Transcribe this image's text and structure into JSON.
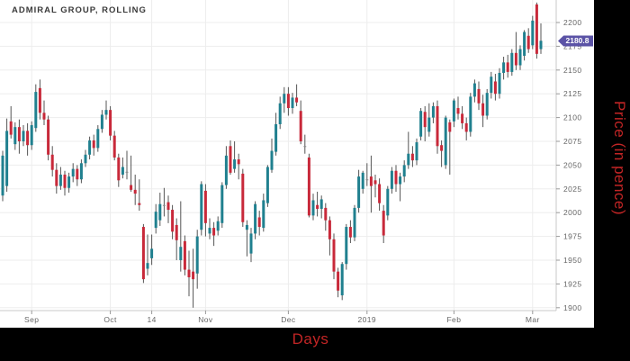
{
  "colors": {
    "up": "#20808f",
    "down": "#c8293a",
    "neutral": "#8a8a8a",
    "wick": "#555555",
    "grid": "#ededed",
    "axis": "#c8c8c8",
    "tick": "#999999",
    "tick_text": "#666666",
    "badge": "#5b53a6",
    "axis_title_red": "#c22525",
    "title_text": "#3a3a3a"
  },
  "chart_data": {
    "type": "candlestick",
    "title": "ADMIRAL GROUP, ROLLING",
    "xlabel": "Days",
    "ylabel": "Price (in pence)",
    "ylim": [
      1900,
      2224
    ],
    "grid": true,
    "last_price": 2180.8,
    "y_ticks": [
      2200,
      2175,
      2150,
      2125,
      2100,
      2075,
      2050,
      2025,
      2000,
      1975,
      1950,
      1925,
      1900
    ],
    "x_ticks": [
      {
        "label": "Sep",
        "index": 7
      },
      {
        "label": "Oct",
        "index": 26
      },
      {
        "label": "14",
        "index": 36
      },
      {
        "label": "Nov",
        "index": 49
      },
      {
        "label": "Dec",
        "index": 69
      },
      {
        "label": "2019",
        "index": 88
      },
      {
        "label": "Feb",
        "index": 109
      },
      {
        "label": "Mar",
        "index": 128
      }
    ],
    "series": [
      {
        "name": "ADMIRAL GROUP, ROLLING",
        "ohlc": [
          [
            2018,
            2065,
            2012,
            2060
          ],
          [
            2028,
            2099,
            2022,
            2086
          ],
          [
            2096,
            2112,
            2078,
            2082
          ],
          [
            2072,
            2095,
            2066,
            2090
          ],
          [
            2090,
            2098,
            2062,
            2075
          ],
          [
            2075,
            2092,
            2070,
            2086
          ],
          [
            2086,
            2094,
            2060,
            2071
          ],
          [
            2071,
            2096,
            2066,
            2092
          ],
          [
            2089,
            2135,
            2085,
            2127
          ],
          [
            2131,
            2140,
            2098,
            2105
          ],
          [
            2105,
            2118,
            2092,
            2098
          ],
          [
            2098,
            2102,
            2055,
            2061
          ],
          [
            2061,
            2070,
            2038,
            2045
          ],
          [
            2045,
            2052,
            2020,
            2028
          ],
          [
            2028,
            2048,
            2024,
            2040
          ],
          [
            2040,
            2044,
            2018,
            2026
          ],
          [
            2026,
            2042,
            2021,
            2038
          ],
          [
            2038,
            2052,
            2032,
            2046
          ],
          [
            2046,
            2050,
            2028,
            2035
          ],
          [
            2035,
            2056,
            2031,
            2052
          ],
          [
            2052,
            2066,
            2048,
            2061
          ],
          [
            2061,
            2080,
            2056,
            2076
          ],
          [
            2076,
            2082,
            2060,
            2068
          ],
          [
            2068,
            2092,
            2064,
            2088
          ],
          [
            2088,
            2108,
            2084,
            2103
          ],
          [
            2103,
            2118,
            2098,
            2108
          ],
          [
            2108,
            2112,
            2076,
            2081
          ],
          [
            2081,
            2086,
            2055,
            2058
          ],
          [
            2058,
            2062,
            2027,
            2034
          ],
          [
            2040,
            2058,
            2036,
            2048
          ],
          [
            2043,
            2065,
            2035,
            2043
          ],
          [
            2029,
            2060,
            2022,
            2024
          ],
          [
            2024,
            2040,
            2008,
            2020
          ],
          [
            2010,
            2035,
            2002,
            2008
          ],
          [
            1985,
            1988,
            1926,
            1930
          ],
          [
            1941,
            1977,
            1934,
            1947
          ],
          [
            1952,
            1977,
            1945,
            1962
          ],
          [
            1984,
            2009,
            1978,
            2001
          ],
          [
            1992,
            2021,
            1986,
            2009
          ],
          [
            2008,
            2026,
            1996,
            2008
          ],
          [
            2011,
            2018,
            1989,
            2003
          ],
          [
            2003,
            2008,
            1972,
            1980
          ],
          [
            1987,
            1994,
            1950,
            1971
          ],
          [
            1950,
            2012,
            1938,
            1964
          ],
          [
            1970,
            1976,
            1934,
            1940
          ],
          [
            1940,
            1960,
            1912,
            1932
          ],
          [
            1938,
            1962,
            1900,
            1930
          ],
          [
            1936,
            1982,
            1920,
            1975
          ],
          [
            1982,
            2033,
            1976,
            2030
          ],
          [
            2023,
            2030,
            1975,
            1989
          ],
          [
            1978,
            1994,
            1972,
            1984
          ],
          [
            1984,
            1990,
            1965,
            1976
          ],
          [
            1981,
            1996,
            1976,
            1991
          ],
          [
            1989,
            2032,
            1984,
            2029
          ],
          [
            2029,
            2070,
            2025,
            2060
          ],
          [
            2070,
            2076,
            2040,
            2042
          ],
          [
            2046,
            2075,
            2042,
            2056
          ],
          [
            2056,
            2062,
            2035,
            2051
          ],
          [
            2041,
            2046,
            1985,
            1990
          ],
          [
            1982,
            1992,
            1954,
            1987
          ],
          [
            1957,
            1984,
            1948,
            1978
          ],
          [
            1978,
            2012,
            1972,
            2009
          ],
          [
            1995,
            2002,
            1976,
            1985
          ],
          [
            1984,
            2020,
            1980,
            2013
          ],
          [
            2010,
            2050,
            2006,
            2048
          ],
          [
            2045,
            2078,
            2042,
            2065
          ],
          [
            2064,
            2105,
            2060,
            2093
          ],
          [
            2093,
            2122,
            2088,
            2115
          ],
          [
            2115,
            2132,
            2105,
            2125
          ],
          [
            2125,
            2132,
            2102,
            2110
          ],
          [
            2110,
            2126,
            2104,
            2121
          ],
          [
            2121,
            2135,
            2112,
            2116
          ],
          [
            2107,
            2118,
            2072,
            2075
          ],
          [
            2070,
            2082,
            2062,
            2070
          ],
          [
            2058,
            2062,
            1995,
            1997
          ],
          [
            1997,
            2020,
            1992,
            2013
          ],
          [
            2008,
            2022,
            1996,
            2004
          ],
          [
            2004,
            2018,
            1994,
            2014
          ],
          [
            2005,
            2010,
            1981,
            1992
          ],
          [
            1992,
            1996,
            1955,
            1972
          ],
          [
            1972,
            1978,
            1930,
            1938
          ],
          [
            1938,
            1942,
            1911,
            1918
          ],
          [
            1913,
            1948,
            1908,
            1946
          ],
          [
            1946,
            1988,
            1940,
            1985
          ],
          [
            1985,
            1992,
            1968,
            1974
          ],
          [
            1974,
            2008,
            1970,
            2005
          ],
          [
            2005,
            2045,
            2000,
            2038
          ],
          [
            2025,
            2044,
            2020,
            2042
          ],
          [
            2035,
            2052,
            2028,
            2035
          ],
          [
            2038,
            2060,
            2000,
            2028
          ],
          [
            2034,
            2040,
            2016,
            2030
          ],
          [
            2030,
            2036,
            2002,
            2010
          ],
          [
            2002,
            2008,
            1968,
            1976
          ],
          [
            1997,
            2028,
            1992,
            2025
          ],
          [
            2025,
            2048,
            2020,
            2044
          ],
          [
            2044,
            2050,
            2022,
            2030
          ],
          [
            2030,
            2042,
            2012,
            2038
          ],
          [
            2038,
            2055,
            2032,
            2050
          ],
          [
            2050,
            2085,
            2046,
            2062
          ],
          [
            2062,
            2070,
            2048,
            2055
          ],
          [
            2055,
            2078,
            2050,
            2074
          ],
          [
            2080,
            2110,
            2076,
            2107
          ],
          [
            2106,
            2112,
            2075,
            2090
          ],
          [
            2085,
            2115,
            2080,
            2100
          ],
          [
            2100,
            2116,
            2094,
            2112
          ],
          [
            2112,
            2118,
            2062,
            2070
          ],
          [
            2071,
            2076,
            2048,
            2065
          ],
          [
            2050,
            2102,
            2046,
            2100
          ],
          [
            2095,
            2098,
            2040,
            2085
          ],
          [
            2096,
            2120,
            2090,
            2118
          ],
          [
            2110,
            2122,
            2098,
            2104
          ],
          [
            2104,
            2112,
            2088,
            2094
          ],
          [
            2094,
            2100,
            2076,
            2085
          ],
          [
            2085,
            2126,
            2080,
            2122
          ],
          [
            2122,
            2140,
            2116,
            2136
          ],
          [
            2130,
            2138,
            2108,
            2115
          ],
          [
            2115,
            2124,
            2090,
            2102
          ],
          [
            2102,
            2130,
            2098,
            2126
          ],
          [
            2126,
            2148,
            2120,
            2143
          ],
          [
            2138,
            2146,
            2118,
            2125
          ],
          [
            2125,
            2152,
            2120,
            2147
          ],
          [
            2147,
            2164,
            2140,
            2158
          ],
          [
            2158,
            2166,
            2142,
            2148
          ],
          [
            2148,
            2172,
            2144,
            2168
          ],
          [
            2168,
            2190,
            2150,
            2155
          ],
          [
            2155,
            2176,
            2150,
            2172
          ],
          [
            2165,
            2192,
            2160,
            2190
          ],
          [
            2186,
            2194,
            2168,
            2172
          ],
          [
            2176,
            2207,
            2172,
            2202
          ],
          [
            2219,
            2221,
            2162,
            2167
          ],
          [
            2172,
            2199,
            2167,
            2180.8
          ]
        ]
      }
    ]
  }
}
